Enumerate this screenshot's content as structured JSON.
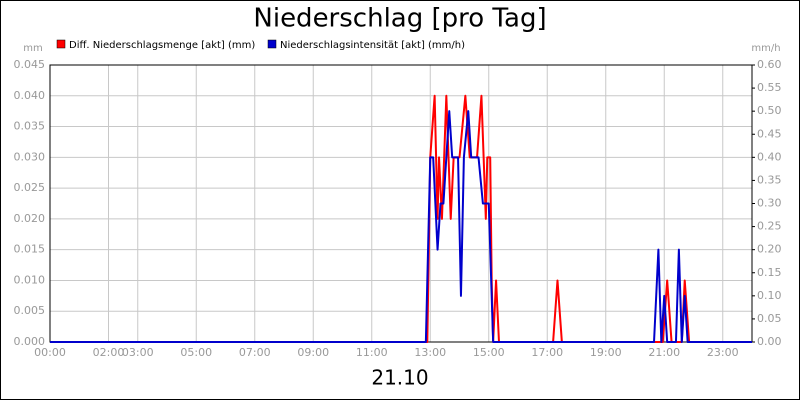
{
  "chart_data": {
    "type": "line",
    "title": "Niederschlag [pro Tag]",
    "date_label": "21.10",
    "y_label": "mm",
    "y2_label": "mm/h",
    "xlim": [
      0,
      24
    ],
    "xticks": [
      {
        "value": 0,
        "label": "00:00"
      },
      {
        "value": 2,
        "label": "02:00"
      },
      {
        "value": 3,
        "label": "03:00"
      },
      {
        "value": 5,
        "label": "05:00"
      },
      {
        "value": 7,
        "label": "07:00"
      },
      {
        "value": 9,
        "label": "09:00"
      },
      {
        "value": 11,
        "label": "11:00"
      },
      {
        "value": 13,
        "label": "13:00"
      },
      {
        "value": 15,
        "label": "15:00"
      },
      {
        "value": 17,
        "label": "17:00"
      },
      {
        "value": 19,
        "label": "19:00"
      },
      {
        "value": 21,
        "label": "21:00"
      },
      {
        "value": 23,
        "label": "23:00"
      }
    ],
    "ylim": [
      0,
      0.045
    ],
    "yticks": [
      {
        "value": 0,
        "label": "0.000"
      },
      0.005,
      {
        "value": 0.01,
        "label": "0.010"
      },
      0.015,
      {
        "value": 0.02,
        "label": "0.020"
      },
      0.025,
      {
        "value": 0.03,
        "label": "0.030"
      },
      0.035,
      {
        "value": 0.04,
        "label": "0.040"
      },
      0.045
    ],
    "y2lim": [
      0,
      0.6
    ],
    "y2ticks": [
      {
        "value": 0,
        "label": "0.00"
      },
      0.05,
      {
        "value": 0.1,
        "label": "0.10"
      },
      0.15,
      {
        "value": 0.2,
        "label": "0.20"
      },
      0.25,
      {
        "value": 0.3,
        "label": "0.30"
      },
      0.35,
      {
        "value": 0.4,
        "label": "0.40"
      },
      0.45,
      {
        "value": 0.5,
        "label": "0.50"
      },
      0.55,
      {
        "value": 0.6,
        "label": "0.60"
      }
    ],
    "grid": true,
    "series": [
      {
        "name": "Diff. Niederschlagsmenge [akt] (mm)",
        "color": "#ff0000",
        "axis": "y",
        "x": [
          0,
          12.9,
          13.0,
          13.15,
          13.25,
          13.3,
          13.4,
          13.55,
          13.7,
          13.8,
          14.0,
          14.2,
          14.35,
          14.6,
          14.75,
          14.9,
          14.95,
          15.05,
          15.1,
          15.15,
          15.25,
          15.35,
          17.2,
          17.35,
          17.5,
          20.95,
          21.1,
          21.25,
          21.6,
          21.7,
          21.85,
          24
        ],
        "values": [
          0,
          0,
          0.03,
          0.04,
          0.02,
          0.03,
          0.02,
          0.04,
          0.02,
          0.03,
          0.03,
          0.04,
          0.03,
          0.03,
          0.04,
          0.02,
          0.03,
          0.03,
          0.01,
          0,
          0.01,
          0,
          0,
          0.01,
          0,
          0,
          0.01,
          0,
          0,
          0.01,
          0,
          0
        ]
      },
      {
        "name": "Niederschlagsintensität [akt] (mm/h)",
        "color": "#0000cc",
        "axis": "y2",
        "x": [
          0,
          12.85,
          13.0,
          13.1,
          13.25,
          13.35,
          13.45,
          13.55,
          13.65,
          13.75,
          13.95,
          14.05,
          14.15,
          14.3,
          14.4,
          14.65,
          14.8,
          15.0,
          15.15,
          20.65,
          20.8,
          20.9,
          21.0,
          21.1,
          21.4,
          21.5,
          21.6,
          21.7,
          21.8,
          24
        ],
        "values": [
          0,
          0,
          0.4,
          0.4,
          0.2,
          0.3,
          0.3,
          0.4,
          0.5,
          0.4,
          0.4,
          0.1,
          0.4,
          0.5,
          0.4,
          0.4,
          0.3,
          0.3,
          0,
          0,
          0.2,
          0,
          0.1,
          0,
          0,
          0.2,
          0,
          0.1,
          0,
          0
        ]
      }
    ]
  }
}
